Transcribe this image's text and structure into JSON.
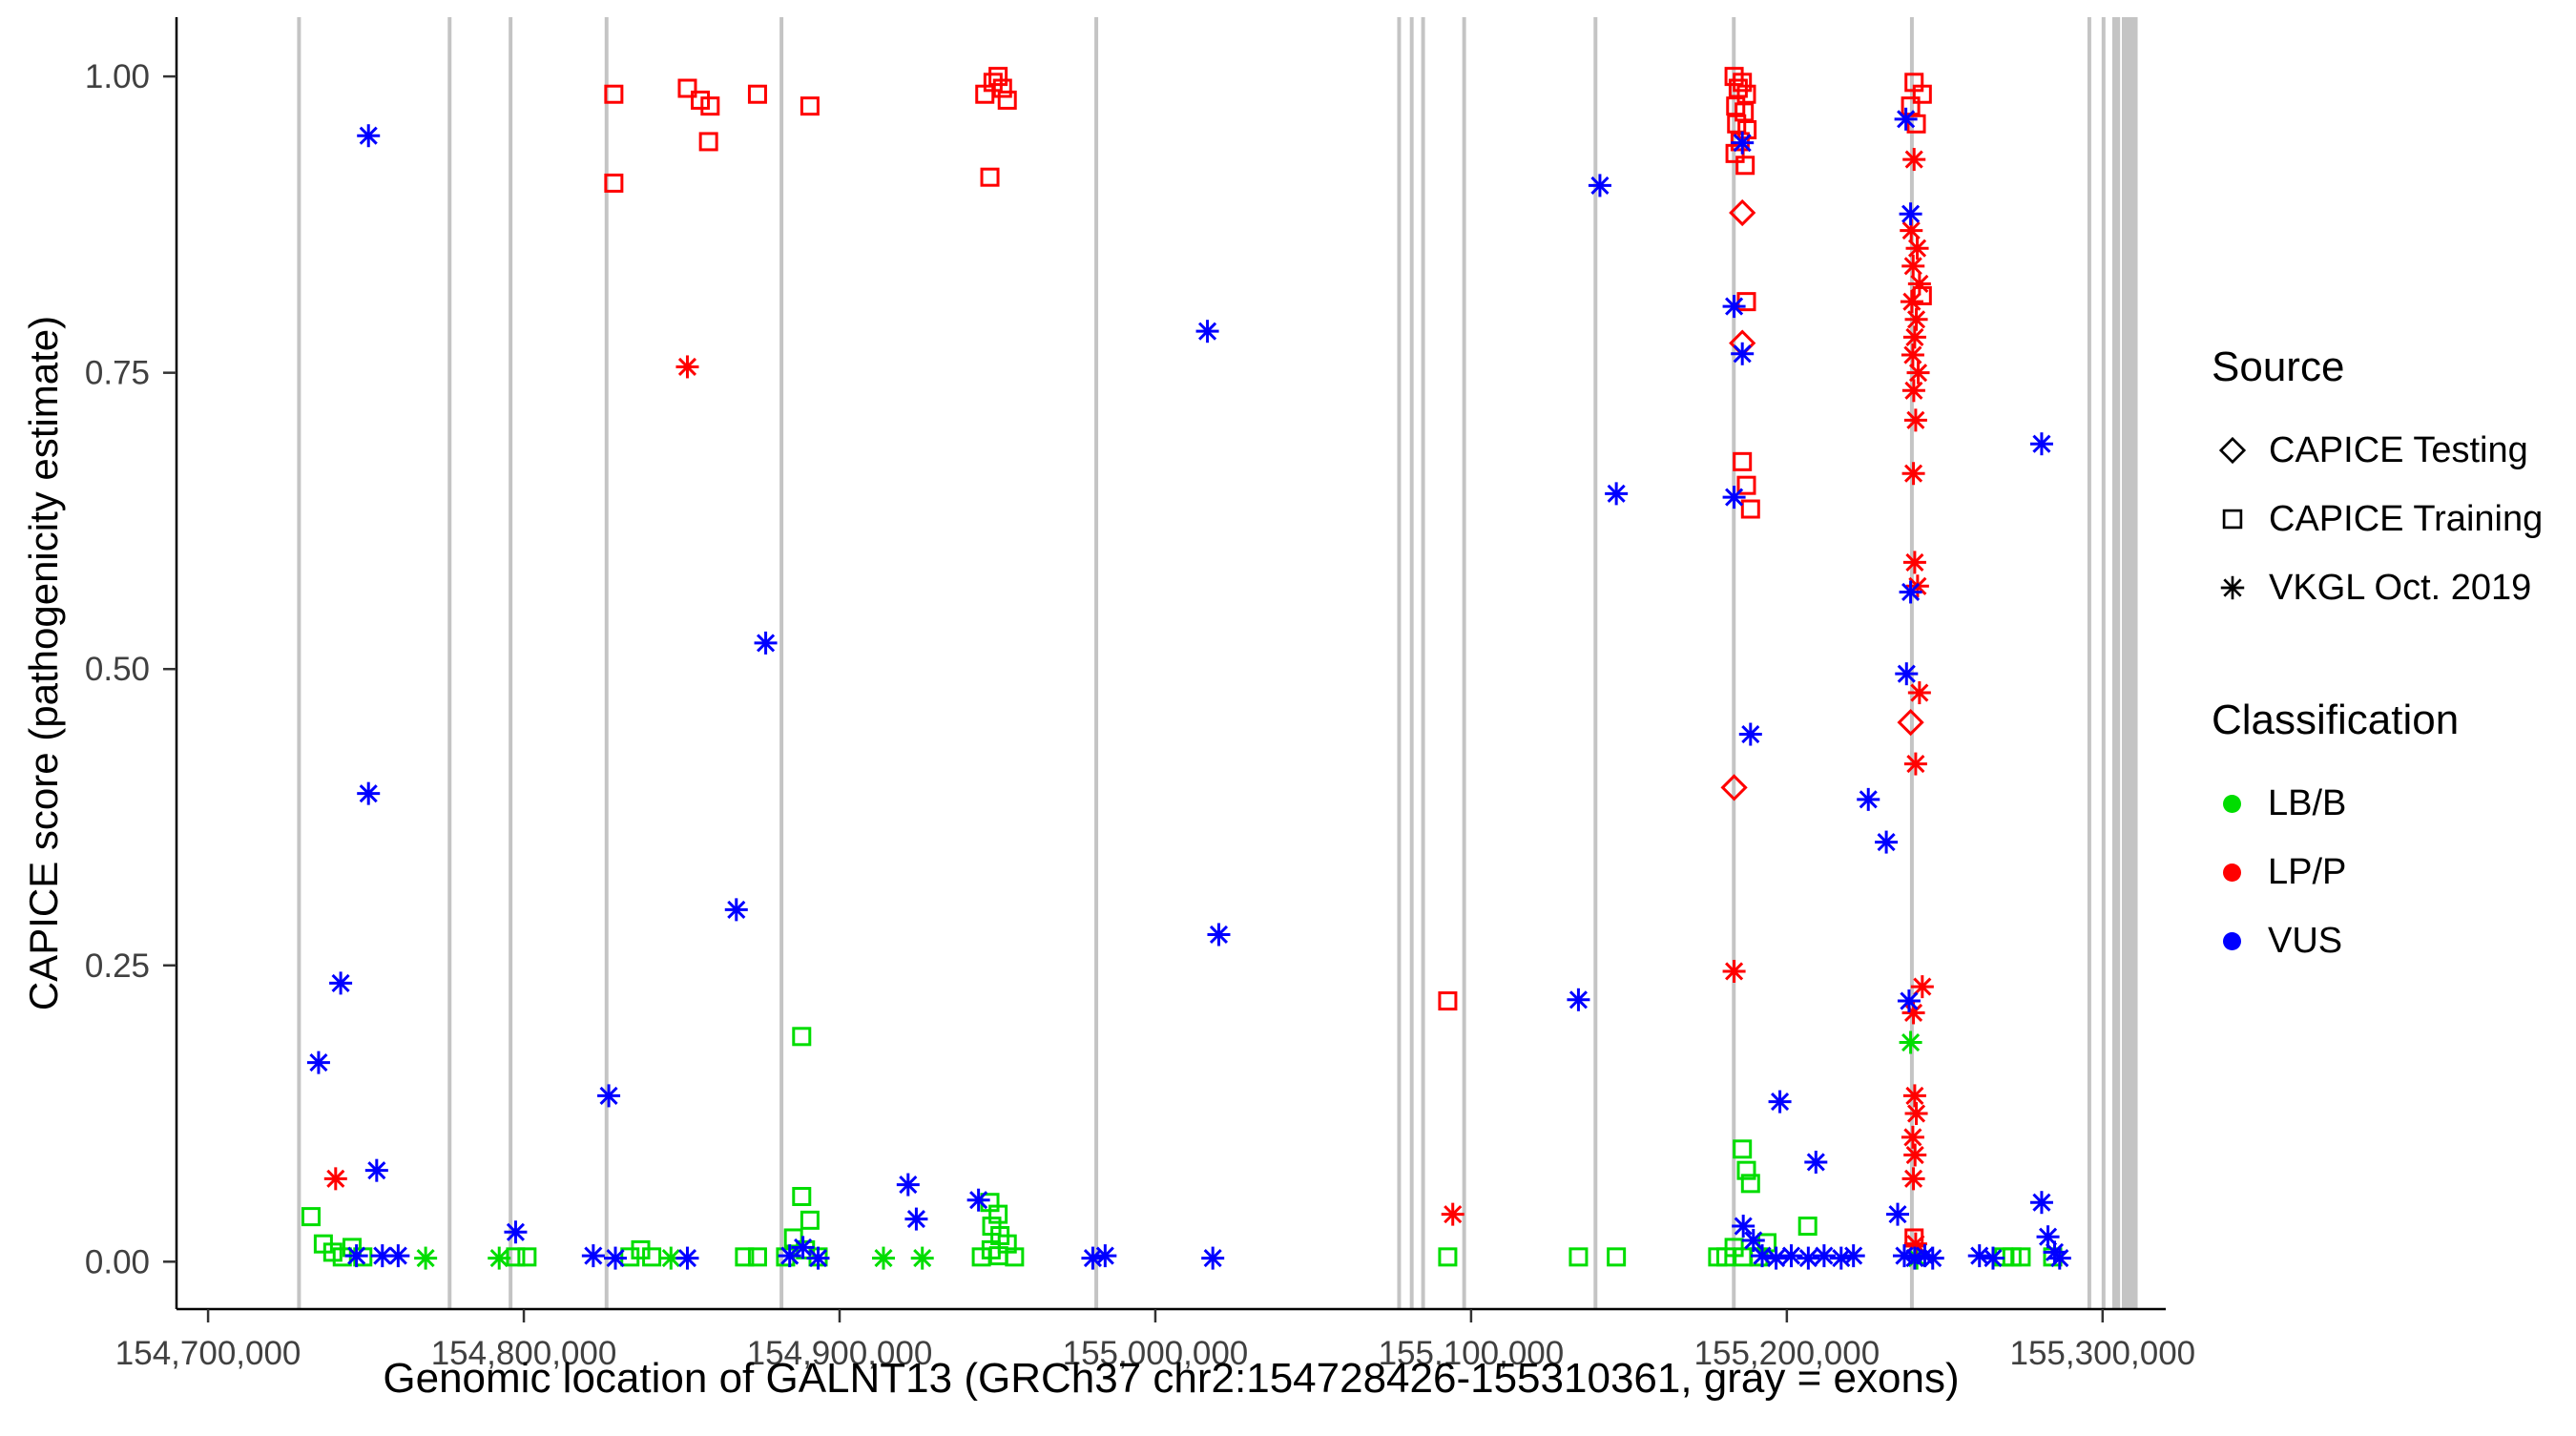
{
  "chart_data": {
    "type": "scatter",
    "title": "",
    "xlabel": "Genomic location of GALNT13 (GRCh37 chr2:154728426-155310361, gray = exons)",
    "ylabel": "CAPICE score (pathogenicity estimate)",
    "x_domain": [
      154690000,
      155320000
    ],
    "y_domain": [
      -0.04,
      1.05
    ],
    "grid": false,
    "legend_position": "right",
    "x_ticks": [
      {
        "value": 154700000,
        "label": "154,700,000"
      },
      {
        "value": 154800000,
        "label": "154,800,000"
      },
      {
        "value": 154900000,
        "label": "154,900,000"
      },
      {
        "value": 155000000,
        "label": "155,000,000"
      },
      {
        "value": 155100000,
        "label": "155,100,000"
      },
      {
        "value": 155200000,
        "label": "155,200,000"
      },
      {
        "value": 155300000,
        "label": "155,300,000"
      }
    ],
    "y_ticks": [
      {
        "value": 0.0,
        "label": "0.00"
      },
      {
        "value": 0.25,
        "label": "0.25"
      },
      {
        "value": 0.5,
        "label": "0.50"
      },
      {
        "value": 0.75,
        "label": "0.75"
      },
      {
        "value": 1.0,
        "label": "1.00"
      }
    ],
    "colors": {
      "lbb": "#00dd00",
      "lpp": "#ff0000",
      "vus": "#0000ff",
      "exon": "#c4c4c4",
      "axis": "#000000",
      "tick_text": "#404040"
    },
    "exons": [
      {
        "pos": 154728800,
        "width_bp": 1200
      },
      {
        "pos": 154776500,
        "width_bp": 1200
      },
      {
        "pos": 154795800,
        "width_bp": 1200
      },
      {
        "pos": 154826200,
        "width_bp": 1200
      },
      {
        "pos": 154881600,
        "width_bp": 1200
      },
      {
        "pos": 154981300,
        "width_bp": 1200
      },
      {
        "pos": 155077200,
        "width_bp": 1200
      },
      {
        "pos": 155081200,
        "width_bp": 1200
      },
      {
        "pos": 155084800,
        "width_bp": 1200
      },
      {
        "pos": 155097800,
        "width_bp": 1200
      },
      {
        "pos": 155139400,
        "width_bp": 1200
      },
      {
        "pos": 155183200,
        "width_bp": 1200
      },
      {
        "pos": 155239600,
        "width_bp": 1200
      },
      {
        "pos": 155295800,
        "width_bp": 1200
      },
      {
        "pos": 155300300,
        "width_bp": 1200
      },
      {
        "pos": 155304300,
        "width_bp": 2500
      },
      {
        "pos": 155308600,
        "width_bp": 5000
      }
    ],
    "legend": {
      "source_title": "Source",
      "source_items": [
        {
          "label": "CAPICE Testing",
          "shape": "diamond-open"
        },
        {
          "label": "CAPICE Training",
          "shape": "square-open"
        },
        {
          "label": "VKGL Oct. 2019",
          "shape": "asterisk"
        }
      ],
      "classification_title": "Classification",
      "classification_items": [
        {
          "label": "LB/B",
          "color_key": "lbb"
        },
        {
          "label": "LP/P",
          "color_key": "lpp"
        },
        {
          "label": "VUS",
          "color_key": "vus"
        }
      ]
    },
    "series": [
      {
        "id": "training-lbb",
        "source": "CAPICE Training",
        "classification": "LB/B",
        "shape": "square-open",
        "color_key": "lbb",
        "points": [
          [
            154732600,
            0.038
          ],
          [
            154736500,
            0.015
          ],
          [
            154739500,
            0.008
          ],
          [
            154742500,
            0.004
          ],
          [
            154745600,
            0.012
          ],
          [
            154749000,
            0.004
          ],
          [
            154797400,
            0.004
          ],
          [
            154801000,
            0.004
          ],
          [
            154833600,
            0.004
          ],
          [
            154837000,
            0.01
          ],
          [
            154840500,
            0.004
          ],
          [
            154869900,
            0.004
          ],
          [
            154874000,
            0.004
          ],
          [
            154888000,
            0.19
          ],
          [
            154888000,
            0.055
          ],
          [
            154890600,
            0.035
          ],
          [
            154885400,
            0.02
          ],
          [
            154889200,
            0.01
          ],
          [
            154882900,
            0.004
          ],
          [
            154893200,
            0.004
          ],
          [
            154947600,
            0.05
          ],
          [
            154950200,
            0.04
          ],
          [
            154948200,
            0.03
          ],
          [
            154950800,
            0.022
          ],
          [
            154953100,
            0.015
          ],
          [
            154948000,
            0.01
          ],
          [
            154950400,
            0.005
          ],
          [
            154944900,
            0.004
          ],
          [
            154955400,
            0.004
          ],
          [
            155092600,
            0.004
          ],
          [
            155134000,
            0.004
          ],
          [
            155146000,
            0.004
          ],
          [
            155185900,
            0.095
          ],
          [
            155187200,
            0.077
          ],
          [
            155188500,
            0.066
          ],
          [
            155178100,
            0.004
          ],
          [
            155180700,
            0.004
          ],
          [
            155183300,
            0.012
          ],
          [
            155186200,
            0.004
          ],
          [
            155191100,
            0.004
          ],
          [
            155193700,
            0.016
          ],
          [
            155206600,
            0.03
          ],
          [
            155268700,
            0.004
          ],
          [
            155271300,
            0.004
          ],
          [
            155274200,
            0.004
          ],
          [
            155284200,
            0.004
          ]
        ]
      },
      {
        "id": "vkgl-lbb",
        "source": "VKGL Oct. 2019",
        "classification": "LB/B",
        "shape": "asterisk",
        "color_key": "lbb",
        "points": [
          [
            154768900,
            0.003
          ],
          [
            154792200,
            0.003
          ],
          [
            154846600,
            0.003
          ],
          [
            154913900,
            0.003
          ],
          [
            154926200,
            0.003
          ],
          [
            155239200,
            0.185
          ],
          [
            155241200,
            0.003
          ]
        ]
      },
      {
        "id": "training-lpp",
        "source": "CAPICE Training",
        "classification": "LP/P",
        "shape": "square-open",
        "color_key": "lpp",
        "points": [
          [
            154828500,
            0.985
          ],
          [
            154828500,
            0.91
          ],
          [
            154851800,
            0.99
          ],
          [
            154855900,
            0.98
          ],
          [
            154859000,
            0.975
          ],
          [
            154858500,
            0.945
          ],
          [
            154874000,
            0.985
          ],
          [
            154890600,
            0.975
          ],
          [
            154946000,
            0.985
          ],
          [
            154948600,
            0.995
          ],
          [
            154950200,
            1.0
          ],
          [
            154951600,
            0.99
          ],
          [
            154953100,
            0.98
          ],
          [
            154947600,
            0.915
          ],
          [
            155092600,
            0.22
          ],
          [
            155183300,
            1.0
          ],
          [
            155185900,
            0.995
          ],
          [
            155184600,
            0.99
          ],
          [
            155187200,
            0.985
          ],
          [
            155183800,
            0.975
          ],
          [
            155186500,
            0.97
          ],
          [
            155184100,
            0.96
          ],
          [
            155187400,
            0.955
          ],
          [
            155185200,
            0.945
          ],
          [
            155183600,
            0.935
          ],
          [
            155186800,
            0.925
          ],
          [
            155187200,
            0.81
          ],
          [
            155185900,
            0.675
          ],
          [
            155187200,
            0.655
          ],
          [
            155188500,
            0.635
          ],
          [
            155240300,
            0.995
          ],
          [
            155242900,
            0.985
          ],
          [
            155239200,
            0.975
          ],
          [
            155241000,
            0.96
          ],
          [
            155242900,
            0.815
          ],
          [
            155240300,
            0.02
          ]
        ]
      },
      {
        "id": "vkgl-lpp",
        "source": "VKGL Oct. 2019",
        "classification": "LP/P",
        "shape": "asterisk",
        "color_key": "lpp",
        "points": [
          [
            154740400,
            0.07
          ],
          [
            154851800,
            0.755
          ],
          [
            155094200,
            0.04
          ],
          [
            155183300,
            0.245
          ],
          [
            155240300,
            0.93
          ],
          [
            155239400,
            0.87
          ],
          [
            155241300,
            0.855
          ],
          [
            155240000,
            0.84
          ],
          [
            155242000,
            0.825
          ],
          [
            155239600,
            0.81
          ],
          [
            155241000,
            0.795
          ],
          [
            155240500,
            0.78
          ],
          [
            155239900,
            0.765
          ],
          [
            155241600,
            0.75
          ],
          [
            155240200,
            0.735
          ],
          [
            155240800,
            0.71
          ],
          [
            155240100,
            0.665
          ],
          [
            155240500,
            0.59
          ],
          [
            155241400,
            0.57
          ],
          [
            155242000,
            0.48
          ],
          [
            155240800,
            0.42
          ],
          [
            155242900,
            0.232
          ],
          [
            155240100,
            0.21
          ],
          [
            155240500,
            0.14
          ],
          [
            155241000,
            0.125
          ],
          [
            155239900,
            0.105
          ],
          [
            155240600,
            0.09
          ],
          [
            155240100,
            0.07
          ],
          [
            155240800,
            0.015
          ]
        ]
      },
      {
        "id": "testing-lpp",
        "source": "CAPICE Testing",
        "classification": "LP/P",
        "shape": "diamond-open",
        "color_key": "lpp",
        "points": [
          [
            155185900,
            0.885
          ],
          [
            155185900,
            0.775
          ],
          [
            155183300,
            0.4
          ],
          [
            155239200,
            0.455
          ]
        ]
      },
      {
        "id": "vkgl-vus",
        "source": "VKGL Oct. 2019",
        "classification": "VUS",
        "shape": "asterisk",
        "color_key": "vus",
        "points": [
          [
            154750800,
            0.95
          ],
          [
            154750800,
            0.395
          ],
          [
            154742000,
            0.235
          ],
          [
            154735000,
            0.168
          ],
          [
            154753400,
            0.077
          ],
          [
            154747000,
            0.005
          ],
          [
            154755200,
            0.005
          ],
          [
            154760200,
            0.005
          ],
          [
            154797400,
            0.025
          ],
          [
            154826900,
            0.14
          ],
          [
            154822000,
            0.005
          ],
          [
            154829000,
            0.003
          ],
          [
            154851800,
            0.003
          ],
          [
            154876600,
            0.522
          ],
          [
            154867300,
            0.297
          ],
          [
            154884200,
            0.005
          ],
          [
            154888400,
            0.012
          ],
          [
            154893200,
            0.003
          ],
          [
            154921700,
            0.065
          ],
          [
            154924300,
            0.036
          ],
          [
            154944000,
            0.052
          ],
          [
            154980200,
            0.003
          ],
          [
            154984100,
            0.005
          ],
          [
            155016500,
            0.785
          ],
          [
            155020100,
            0.276
          ],
          [
            155018200,
            0.003
          ],
          [
            155134000,
            0.221
          ],
          [
            155140800,
            0.908
          ],
          [
            155146000,
            0.648
          ],
          [
            155185900,
            0.944
          ],
          [
            155183300,
            0.806
          ],
          [
            155185900,
            0.766
          ],
          [
            155183300,
            0.645
          ],
          [
            155188500,
            0.445
          ],
          [
            155197800,
            0.135
          ],
          [
            155209200,
            0.084
          ],
          [
            155186200,
            0.03
          ],
          [
            155189400,
            0.018
          ],
          [
            155192200,
            0.005
          ],
          [
            155196600,
            0.003
          ],
          [
            155201400,
            0.005
          ],
          [
            155206800,
            0.003
          ],
          [
            155211800,
            0.005
          ],
          [
            155217200,
            0.003
          ],
          [
            155221100,
            0.005
          ],
          [
            155225800,
            0.39
          ],
          [
            155231500,
            0.354
          ],
          [
            155237700,
            0.964
          ],
          [
            155239200,
            0.884
          ],
          [
            155239200,
            0.565
          ],
          [
            155237900,
            0.496
          ],
          [
            155238700,
            0.22
          ],
          [
            155235100,
            0.04
          ],
          [
            155237200,
            0.005
          ],
          [
            155240500,
            0.003
          ],
          [
            155243700,
            0.005
          ],
          [
            155246200,
            0.003
          ],
          [
            155261000,
            0.005
          ],
          [
            155265300,
            0.003
          ],
          [
            155280700,
            0.69
          ],
          [
            155280700,
            0.05
          ],
          [
            155282700,
            0.021
          ],
          [
            155284800,
            0.008
          ],
          [
            155286400,
            0.003
          ]
        ]
      }
    ]
  }
}
